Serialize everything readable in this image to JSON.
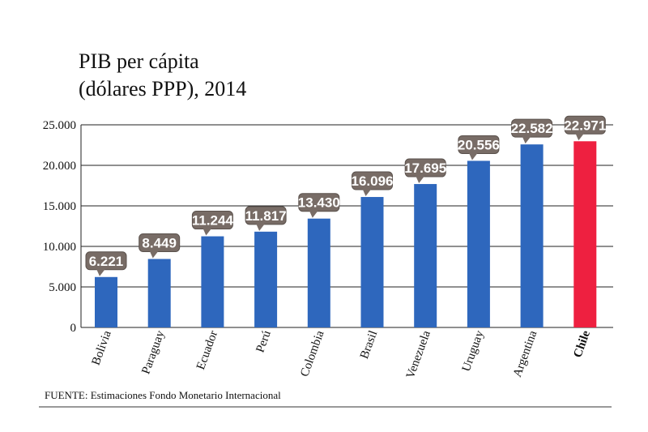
{
  "chart_data": {
    "type": "bar",
    "title": [
      "PIB per cápita",
      "(dólares PPP), 2014"
    ],
    "categories": [
      "Bolivia",
      "Paraguay",
      "Ecuador",
      "Perú",
      "Colombia",
      "Brasil",
      "Venezuela",
      "Uruguay",
      "Argentina",
      "Chile"
    ],
    "values": [
      6221,
      8449,
      11244,
      11817,
      13430,
      16096,
      17695,
      20556,
      22582,
      22971
    ],
    "value_labels": [
      "6.221",
      "8.449",
      "11.244",
      "11.817",
      "13.430",
      "16.096",
      "17.695",
      "20.556",
      "22.582",
      "22.971"
    ],
    "highlight_category": "Chile",
    "ylim": [
      0,
      25000
    ],
    "yticks": [
      0,
      5000,
      10000,
      15000,
      20000,
      25000
    ],
    "ytick_labels": [
      "0",
      "5.000",
      "10.000",
      "15.000",
      "20.000",
      "25.000"
    ],
    "grid": true,
    "xlabel": "",
    "ylabel": "",
    "source": "FUENTE: Estimaciones Fondo Monetario Internacional"
  },
  "colors": {
    "bar": "#2e67bd",
    "highlight": "#ee2040",
    "label_box": "#786c66",
    "grid": "#222222"
  }
}
